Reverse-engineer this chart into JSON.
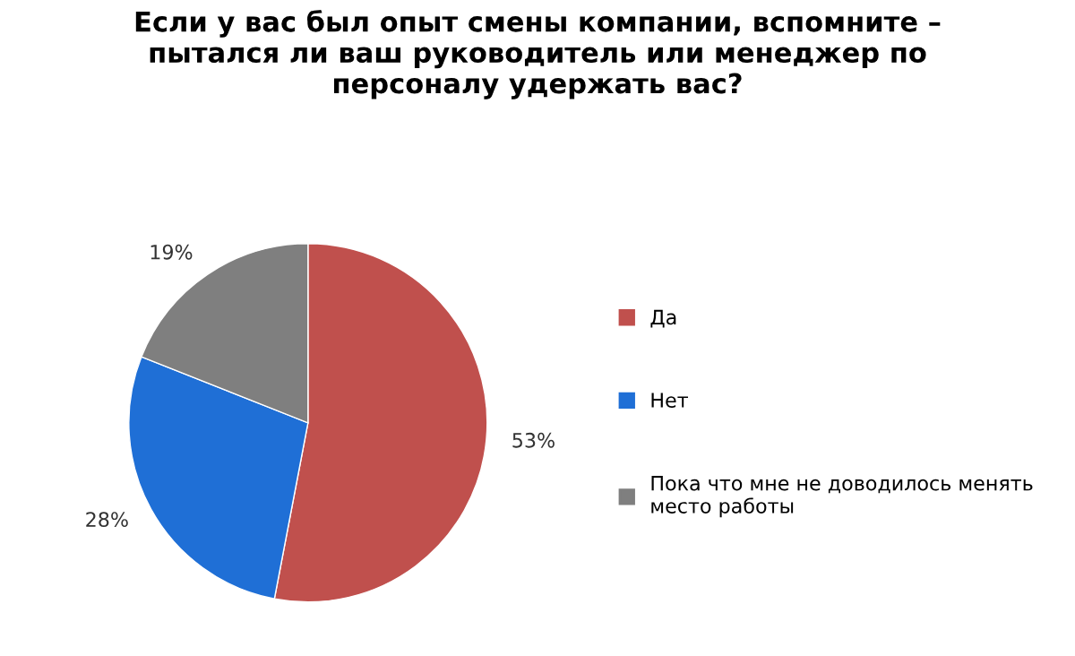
{
  "chart_data": {
    "type": "pie",
    "title": "Если у вас был опыт смены компании, вспомните –\nпытался ли ваш руководитель или менеджер по\nперсоналу удержать вас?",
    "categories": [
      "Да",
      "Нет",
      "Пока что мне не доводилось менять\nместо работы"
    ],
    "values": [
      53,
      28,
      19
    ],
    "colors": [
      "#c0504d",
      "#1f6fd6",
      "#7f7f7f"
    ],
    "value_labels": [
      "53%",
      "28%",
      "19%"
    ],
    "legend": "right"
  }
}
